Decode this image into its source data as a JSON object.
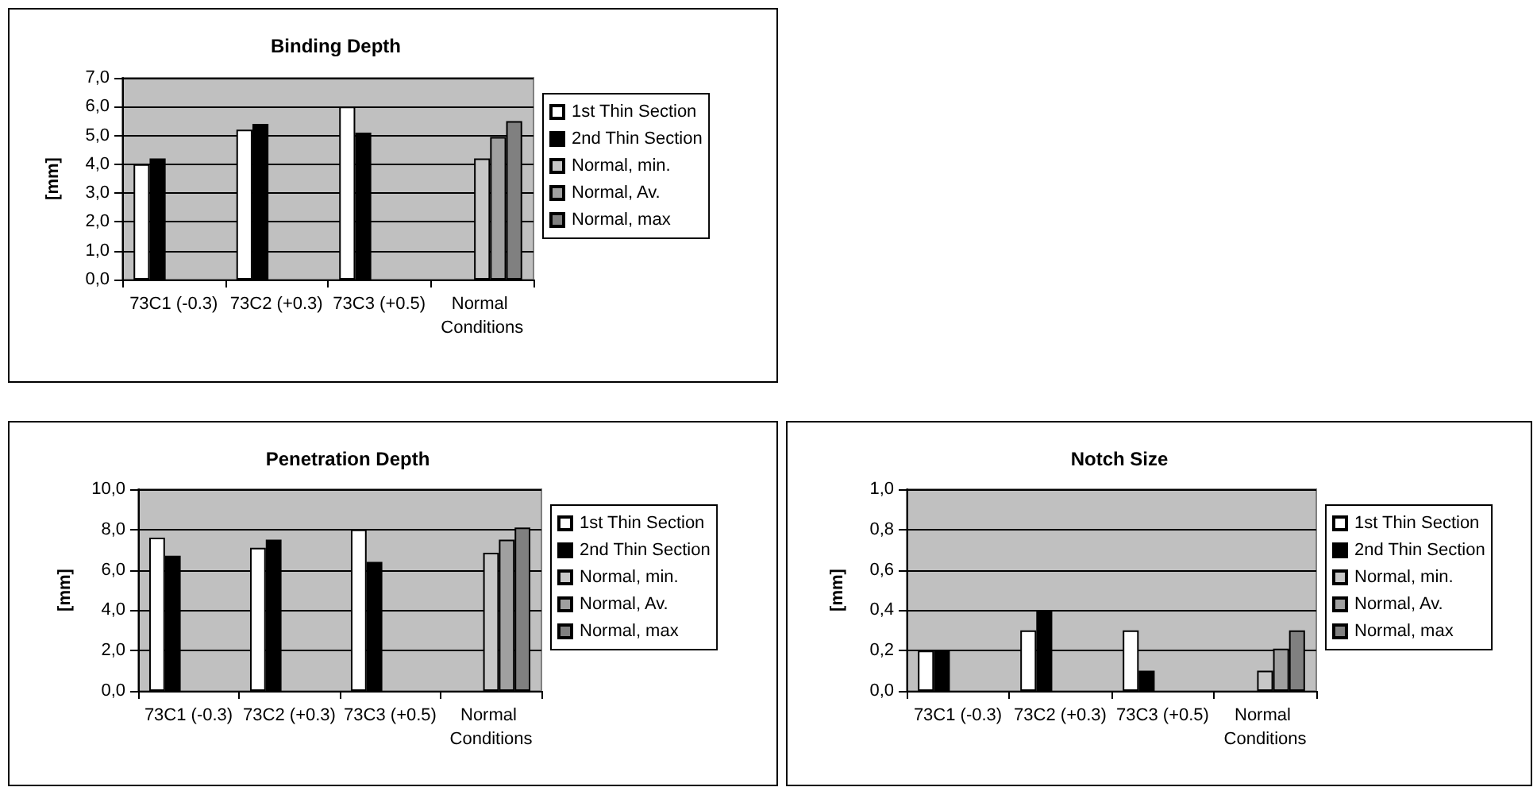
{
  "chart_data": [
    {
      "type": "bar",
      "title": "Binding Depth",
      "ylabel": "[mm]",
      "categories": [
        "73C1 (-0.3)",
        "73C2 (+0.3)",
        "73C3 (+0.5)",
        "Normal Conditions"
      ],
      "series": [
        {
          "name": "1st Thin Section",
          "color": "#ffffff",
          "values": [
            4.0,
            5.2,
            6.0,
            null
          ]
        },
        {
          "name": "2nd Thin Section",
          "color": "#000000",
          "values": [
            4.2,
            5.4,
            5.1,
            null
          ]
        },
        {
          "name": "Normal, min.",
          "color": "#c8c8c8",
          "values": [
            null,
            null,
            null,
            4.2
          ]
        },
        {
          "name": "Normal, Av.",
          "color": "#a0a0a0",
          "values": [
            null,
            null,
            null,
            4.95
          ]
        },
        {
          "name": "Normal, max",
          "color": "#808080",
          "values": [
            null,
            null,
            null,
            5.5
          ]
        }
      ],
      "ylim": [
        0,
        7
      ],
      "yticks": [
        {
          "value": 0,
          "label": "0,0"
        },
        {
          "value": 1,
          "label": "1,0"
        },
        {
          "value": 2,
          "label": "2,0"
        },
        {
          "value": 3,
          "label": "3,0"
        },
        {
          "value": 4,
          "label": "4,0"
        },
        {
          "value": 5,
          "label": "5,0"
        },
        {
          "value": 6,
          "label": "6,0"
        },
        {
          "value": 7,
          "label": "7,0"
        }
      ],
      "grid": "y",
      "legend": "right"
    },
    {
      "type": "bar",
      "title": "Penetration Depth",
      "ylabel": "[mm]",
      "categories": [
        "73C1 (-0.3)",
        "73C2 (+0.3)",
        "73C3 (+0.5)",
        "Normal Conditions"
      ],
      "series": [
        {
          "name": "1st Thin Section",
          "color": "#ffffff",
          "values": [
            7.6,
            7.1,
            8.0,
            null
          ]
        },
        {
          "name": "2nd Thin Section",
          "color": "#000000",
          "values": [
            6.7,
            7.5,
            6.4,
            null
          ]
        },
        {
          "name": "Normal, min.",
          "color": "#c8c8c8",
          "values": [
            null,
            null,
            null,
            6.85
          ]
        },
        {
          "name": "Normal, Av.",
          "color": "#a0a0a0",
          "values": [
            null,
            null,
            null,
            7.5
          ]
        },
        {
          "name": "Normal, max",
          "color": "#808080",
          "values": [
            null,
            null,
            null,
            8.1
          ]
        }
      ],
      "ylim": [
        0,
        10
      ],
      "yticks": [
        {
          "value": 0,
          "label": "0,0"
        },
        {
          "value": 2,
          "label": "2,0"
        },
        {
          "value": 4,
          "label": "4,0"
        },
        {
          "value": 6,
          "label": "6,0"
        },
        {
          "value": 8,
          "label": "8,0"
        },
        {
          "value": 10,
          "label": "10,0"
        }
      ],
      "grid": "y",
      "legend": "right"
    },
    {
      "type": "bar",
      "title": "Notch Size",
      "ylabel": "[mm]",
      "categories": [
        "73C1 (-0.3)",
        "73C2 (+0.3)",
        "73C3 (+0.5)",
        "Normal Conditions"
      ],
      "series": [
        {
          "name": "1st Thin Section",
          "color": "#ffffff",
          "values": [
            0.2,
            0.3,
            0.3,
            null
          ]
        },
        {
          "name": "2nd Thin Section",
          "color": "#000000",
          "values": [
            0.2,
            0.4,
            0.1,
            null
          ]
        },
        {
          "name": "Normal, min.",
          "color": "#c8c8c8",
          "values": [
            null,
            null,
            null,
            0.1
          ]
        },
        {
          "name": "Normal, Av.",
          "color": "#a0a0a0",
          "values": [
            null,
            null,
            null,
            0.21
          ]
        },
        {
          "name": "Normal, max",
          "color": "#808080",
          "values": [
            null,
            null,
            null,
            0.3
          ]
        }
      ],
      "ylim": [
        0,
        1
      ],
      "yticks": [
        {
          "value": 0,
          "label": "0,0"
        },
        {
          "value": 0.2,
          "label": "0,2"
        },
        {
          "value": 0.4,
          "label": "0,4"
        },
        {
          "value": 0.6,
          "label": "0,6"
        },
        {
          "value": 0.8,
          "label": "0,8"
        },
        {
          "value": 1,
          "label": "1,0"
        }
      ],
      "grid": "y",
      "legend": "right"
    }
  ]
}
